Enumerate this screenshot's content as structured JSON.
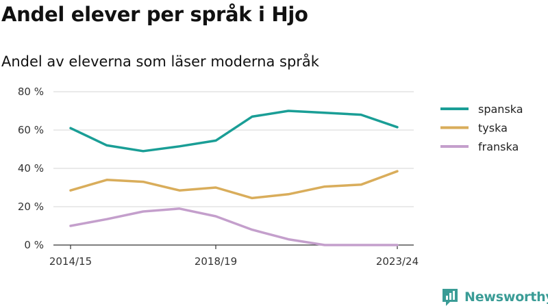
{
  "header": {
    "title": "Andel elever per språk i Hjo",
    "subtitle": "Andel av eleverna som läser moderna språk"
  },
  "branding": {
    "name": "Newsworthy",
    "color": "#3a9c96",
    "icon": "newsworthy-logo-icon"
  },
  "chart_data": {
    "type": "line",
    "x": [
      "2014/15",
      "2015/16",
      "2016/17",
      "2017/18",
      "2018/19",
      "2019/20",
      "2020/21",
      "2021/22",
      "2022/23",
      "2023/24"
    ],
    "x_tick_labels": [
      "2014/15",
      "",
      "",
      "",
      "2018/19",
      "",
      "",
      "",
      "",
      "2023/24"
    ],
    "y_ticks": [
      0,
      20,
      40,
      60,
      80
    ],
    "y_tick_labels": [
      "0 %",
      "20 %",
      "40 %",
      "60 %",
      "80 %"
    ],
    "ylim": [
      0,
      80
    ],
    "grid": "horizontal",
    "legend_position": "right",
    "series": [
      {
        "name": "spanska",
        "color": "#1a9e96",
        "values": [
          61,
          52,
          49,
          51.5,
          54.5,
          67,
          70,
          69,
          68,
          61.5
        ]
      },
      {
        "name": "tyska",
        "color": "#d9ad5b",
        "values": [
          28.5,
          34,
          33,
          28.5,
          30,
          24.5,
          26.5,
          30.5,
          31.5,
          38.5
        ]
      },
      {
        "name": "franska",
        "color": "#c49fcc",
        "values": [
          10,
          13.5,
          17.5,
          19,
          15,
          8,
          3,
          0,
          0,
          0
        ]
      }
    ]
  }
}
